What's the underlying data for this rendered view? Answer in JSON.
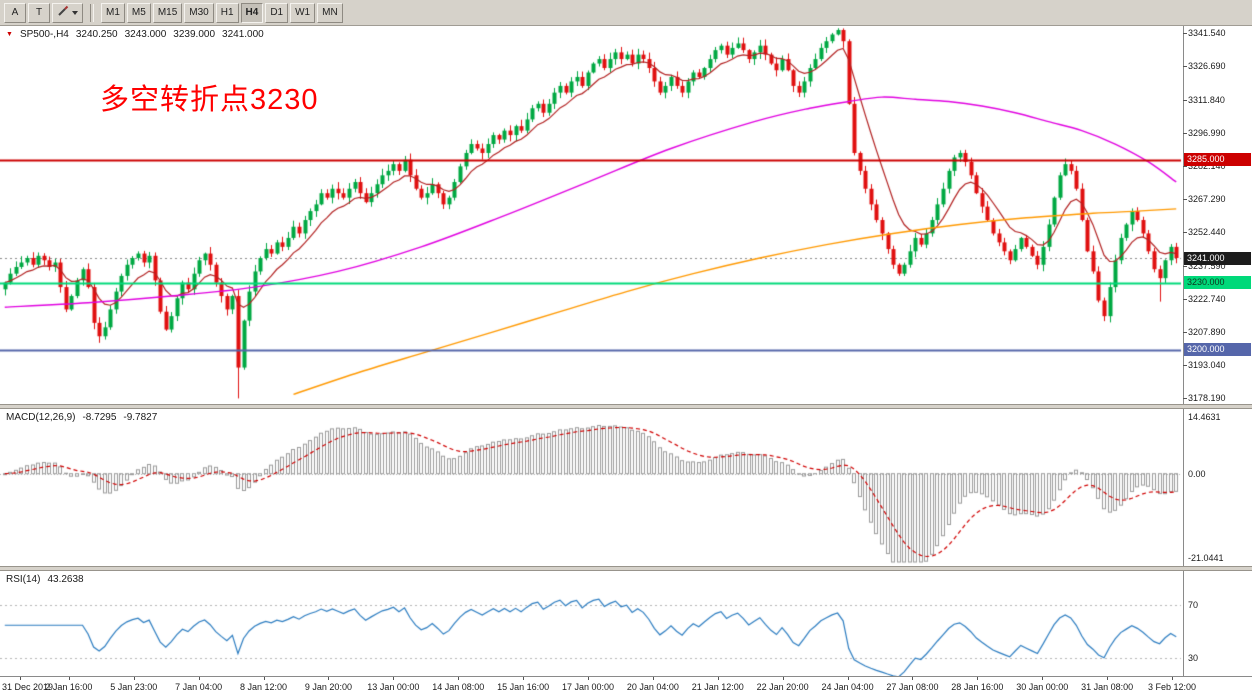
{
  "toolbar": {
    "button_a": "A",
    "button_t": "T",
    "timeframes": [
      "M1",
      "M5",
      "M15",
      "M30",
      "H1",
      "H4",
      "D1",
      "W1",
      "MN"
    ],
    "active_timeframe": "H4"
  },
  "chart_data": {
    "type": "candlestick",
    "marker": "▼",
    "symbol_period": "SP500-,H4",
    "ohlc": {
      "open": "3240.250",
      "high": "3243.000",
      "low": "3239.000",
      "close": "3241.000"
    },
    "annotation": "多空转折点3230",
    "y_range": {
      "min": 3175.7,
      "max": 3344.8
    },
    "price_ticks": [
      3341.54,
      3326.69,
      3311.84,
      3296.99,
      3282.14,
      3267.29,
      3252.44,
      3237.59,
      3222.74,
      3207.89,
      3193.04,
      3178.19
    ],
    "colors": {
      "bull": "#00a843",
      "bear": "#e01010",
      "ma_fast": "#b22222",
      "ma_mid": "#e000e0",
      "ma_slow": "#ff9900"
    },
    "levels": [
      {
        "price": 3285.0,
        "label": "3285.000",
        "color": "#cc0000",
        "badge_bg": "#cc0000",
        "text": "#ffffff"
      },
      {
        "price": 3230.0,
        "label": "3230.000",
        "color": "#00d97a",
        "badge_bg": "#00d97a",
        "text": "#10331e"
      },
      {
        "price": 3200.0,
        "label": "3200.000",
        "color": "#5566aa",
        "badge_bg": "#5566aa",
        "text": "#ffffff"
      }
    ],
    "current": {
      "price": 3241.0,
      "label": "3241.000",
      "badge_bg": "#1c1c1c",
      "text": "#ffffff",
      "line_color": "#8a8a8a"
    },
    "candles": {
      "closes": [
        3230,
        3234,
        3237,
        3239,
        3241,
        3238,
        3242,
        3240,
        3237,
        3239,
        3228,
        3218,
        3224,
        3231,
        3236,
        3228,
        3212,
        3206,
        3210,
        3218,
        3226,
        3233,
        3238,
        3241,
        3243,
        3239,
        3242,
        3231,
        3217,
        3209,
        3215,
        3223,
        3230,
        3227,
        3234,
        3240,
        3243,
        3238,
        3230,
        3224,
        3218,
        3224,
        3192,
        3213,
        3226,
        3235,
        3241,
        3245,
        3243,
        3248,
        3246,
        3250,
        3255,
        3252,
        3258,
        3262,
        3265,
        3270,
        3268,
        3272,
        3270,
        3268,
        3272,
        3275,
        3270,
        3266,
        3270,
        3274,
        3278,
        3280,
        3283,
        3280,
        3285,
        3278,
        3272,
        3268,
        3270,
        3274,
        3270,
        3265,
        3268,
        3275,
        3282,
        3288,
        3292,
        3290,
        3288,
        3292,
        3296,
        3294,
        3298,
        3296,
        3300,
        3298,
        3303,
        3308,
        3310,
        3306,
        3310,
        3315,
        3318,
        3315,
        3320,
        3322,
        3318,
        3324,
        3328,
        3330,
        3326,
        3330,
        3333,
        3330,
        3332,
        3328,
        3332,
        3330,
        3326,
        3320,
        3315,
        3318,
        3322,
        3318,
        3315,
        3320,
        3324,
        3322,
        3326,
        3330,
        3334,
        3336,
        3332,
        3335,
        3337,
        3334,
        3330,
        3333,
        3336,
        3332,
        3328,
        3325,
        3330,
        3325,
        3318,
        3315,
        3320,
        3326,
        3330,
        3335,
        3338,
        3341,
        3343,
        3338,
        3310,
        3288,
        3280,
        3272,
        3265,
        3258,
        3252,
        3245,
        3238,
        3234,
        3238,
        3244,
        3250,
        3247,
        3252,
        3258,
        3265,
        3272,
        3280,
        3286,
        3288,
        3284,
        3278,
        3270,
        3264,
        3258,
        3252,
        3248,
        3244,
        3240,
        3245,
        3250,
        3246,
        3242,
        3238,
        3246,
        3256,
        3268,
        3278,
        3283,
        3280,
        3272,
        3258,
        3244,
        3235,
        3222,
        3215,
        3228,
        3240,
        3250,
        3256,
        3262,
        3258,
        3252,
        3244,
        3236,
        3232,
        3240,
        3246,
        3241
      ],
      "wick_overrides": [
        {
          "i": 42,
          "low": 3178.2
        },
        {
          "i": 150,
          "high": 3343.8
        },
        {
          "i": 208,
          "low": 3221.5
        }
      ]
    },
    "ma_fast_period": 9,
    "ma_mid_anchors": [
      [
        0,
        3219
      ],
      [
        15,
        3221
      ],
      [
        30,
        3224
      ],
      [
        45,
        3228
      ],
      [
        60,
        3235
      ],
      [
        75,
        3246
      ],
      [
        90,
        3260
      ],
      [
        105,
        3275
      ],
      [
        120,
        3290
      ],
      [
        135,
        3302
      ],
      [
        145,
        3308
      ],
      [
        152,
        3311
      ],
      [
        158,
        3313
      ],
      [
        164,
        3312
      ],
      [
        170,
        3311
      ],
      [
        176,
        3309
      ],
      [
        182,
        3306
      ],
      [
        188,
        3302
      ],
      [
        194,
        3298
      ],
      [
        200,
        3292
      ],
      [
        206,
        3284
      ],
      [
        211,
        3275
      ]
    ],
    "ma_slow_anchors": [
      [
        52,
        3180
      ],
      [
        64,
        3190
      ],
      [
        76,
        3199
      ],
      [
        88,
        3208
      ],
      [
        100,
        3217
      ],
      [
        112,
        3226
      ],
      [
        124,
        3234
      ],
      [
        136,
        3241
      ],
      [
        148,
        3247
      ],
      [
        160,
        3252
      ],
      [
        172,
        3256
      ],
      [
        184,
        3259
      ],
      [
        196,
        3261
      ],
      [
        204,
        3262
      ],
      [
        211,
        3263
      ]
    ],
    "macd": {
      "title": "MACD(12,26,9)",
      "main_value": "-8.7295",
      "signal_value": "-9.7827",
      "fast": 12,
      "slow": 26,
      "signal": 9,
      "range": {
        "min": -21.0441,
        "max": 14.4631
      },
      "scale_labels": [
        "14.4631",
        "0.00",
        "-21.0441"
      ],
      "hist_color": "#9a9a9a",
      "signal_color": "#d00000"
    },
    "rsi": {
      "title": "RSI(14)",
      "value": "43.2638",
      "period": 14,
      "levels": [
        70,
        30
      ],
      "view_range": {
        "min": 19,
        "max": 93
      },
      "color": "#2b7cc0"
    }
  },
  "time_axis": {
    "labels": [
      "31 Dec 2019",
      "2 Jan 16:00",
      "5 Jan 23:00",
      "7 Jan 04:00",
      "8 Jan 12:00",
      "9 Jan 20:00",
      "13 Jan 00:00",
      "14 Jan 08:00",
      "15 Jan 16:00",
      "17 Jan 00:00",
      "20 Jan 04:00",
      "21 Jan 12:00",
      "22 Jan 20:00",
      "24 Jan 04:00",
      "27 Jan 08:00",
      "28 Jan 16:00",
      "30 Jan 00:00",
      "31 Jan 08:00",
      "3 Feb 12:00"
    ]
  }
}
